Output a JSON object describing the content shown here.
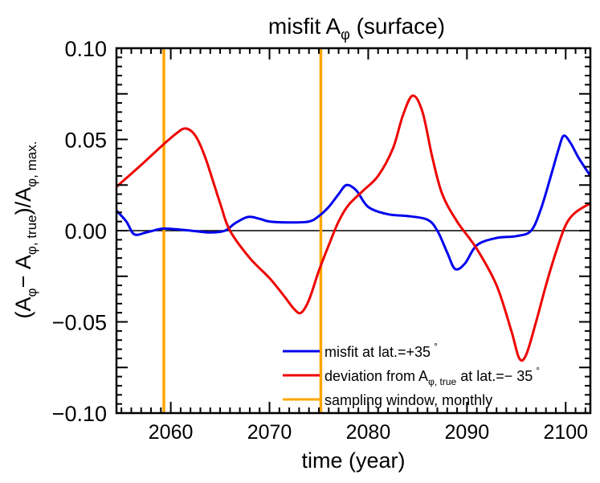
{
  "chart_data": {
    "type": "line",
    "title": "misfit Aφ (surface)",
    "title_parts": {
      "base": "misfit A",
      "sub": "φ",
      "rest": " (surface)"
    },
    "xlabel": "time (year)",
    "ylabel_parts": {
      "open": "(A",
      "sub1": "φ",
      "minus": "− A",
      "sub2": "φ, true",
      "mid": ")/A",
      "sub3": "φ, max."
    },
    "xlim": [
      2054.5,
      2102.5
    ],
    "ylim": [
      -0.1,
      0.1
    ],
    "x_ticks": [
      2060,
      2070,
      2080,
      2090,
      2100
    ],
    "x_tick_labels": [
      "2060",
      "2070",
      "2080",
      "2090",
      "2100"
    ],
    "y_ticks": [
      -0.1,
      -0.05,
      0.0,
      0.05,
      0.1
    ],
    "y_tick_labels": [
      "−0.10",
      "−0.05",
      "0.00",
      "0.05",
      "0.10"
    ],
    "zero_line": 0.0,
    "sampling_years": [
      2059.3,
      2075.2
    ],
    "series": [
      {
        "name": "misfit at lat.=+35°",
        "color": "#0000ee",
        "x": [
          2054.5,
          2055.5,
          2056.3,
          2057.5,
          2059,
          2060,
          2062,
          2064,
          2065.5,
          2066.5,
          2067.8,
          2069,
          2070,
          2072,
          2074,
          2075,
          2076,
          2077,
          2077.8,
          2078.8,
          2080,
          2082,
          2084,
          2086,
          2087,
          2088,
          2088.8,
          2089.8,
          2091,
          2093,
          2095,
          2096.5,
          2097.5,
          2098.5,
          2099.3,
          2099.8,
          2100.5,
          2101.3,
          2102.5
        ],
        "y": [
          0.011,
          0.005,
          -0.002,
          -0.001,
          0.001,
          0.001,
          0.0,
          -0.001,
          0.0,
          0.004,
          0.0075,
          0.0065,
          0.005,
          0.0045,
          0.005,
          0.008,
          0.013,
          0.02,
          0.025,
          0.022,
          0.013,
          0.009,
          0.008,
          0.006,
          0.0,
          -0.012,
          -0.021,
          -0.018,
          -0.008,
          -0.004,
          -0.003,
          0.0,
          0.012,
          0.03,
          0.045,
          0.052,
          0.048,
          0.04,
          0.03
        ]
      },
      {
        "name": "deviation from Aφ, true at lat.=−35°",
        "color": "#ee0000",
        "x": [
          2054.5,
          2057,
          2059,
          2060.5,
          2061.5,
          2062.5,
          2063.5,
          2065,
          2066,
          2068,
          2070,
          2071.5,
          2072.5,
          2073.2,
          2074,
          2075,
          2076,
          2077,
          2078,
          2079.5,
          2081,
          2082.5,
          2083.5,
          2084.5,
          2085.5,
          2086.5,
          2087.5,
          2089,
          2091,
          2093,
          2094.5,
          2095.3,
          2096,
          2097,
          2098,
          2099,
          2100,
          2101,
          2102.5
        ],
        "y": [
          0.024,
          0.036,
          0.046,
          0.053,
          0.056,
          0.052,
          0.04,
          0.015,
          0.0,
          -0.015,
          -0.026,
          -0.036,
          -0.043,
          -0.045,
          -0.038,
          -0.022,
          -0.008,
          0.005,
          0.014,
          0.022,
          0.03,
          0.045,
          0.063,
          0.074,
          0.065,
          0.04,
          0.02,
          0.005,
          -0.01,
          -0.03,
          -0.055,
          -0.07,
          -0.068,
          -0.05,
          -0.03,
          -0.012,
          0.003,
          0.01,
          0.015
        ]
      }
    ],
    "legend": {
      "position": "bottom-right",
      "entries": [
        {
          "color": "#0000ee",
          "base": "misfit at lat.=+35",
          "sub": "",
          "rest": "",
          "sup": "°"
        },
        {
          "color": "#ee0000",
          "base": "deviation from A",
          "sub": "φ, true",
          "rest": " at lat.=− 35",
          "sup": "°"
        },
        {
          "color": "#ffa500",
          "base": "sampling window, monthly",
          "sub": "",
          "rest": "",
          "sup": ""
        }
      ]
    },
    "colors": {
      "zero_line": "#000000",
      "sampling": "#ffa500",
      "axes": "#000000"
    }
  }
}
